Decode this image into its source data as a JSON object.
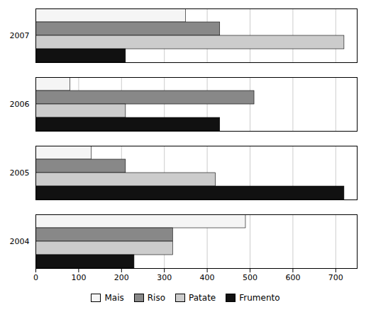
{
  "chart_data": {
    "type": "bar",
    "orientation": "horizontal",
    "categories": [
      "2004",
      "2005",
      "2006",
      "2007"
    ],
    "series": [
      {
        "name": "Mais",
        "color": "#f5f5f5",
        "values": [
          490,
          130,
          80,
          350
        ]
      },
      {
        "name": "Riso",
        "color": "#888888",
        "values": [
          320,
          210,
          510,
          430
        ]
      },
      {
        "name": "Patate",
        "color": "#cccccc",
        "values": [
          320,
          420,
          210,
          720
        ]
      },
      {
        "name": "Frumento",
        "color": "#111111",
        "values": [
          230,
          720,
          430,
          210
        ]
      }
    ],
    "xlim": [
      0,
      750
    ],
    "xticks": [
      0,
      100,
      200,
      300,
      400,
      500,
      600,
      700
    ],
    "grid": true,
    "legend": "bottom"
  }
}
